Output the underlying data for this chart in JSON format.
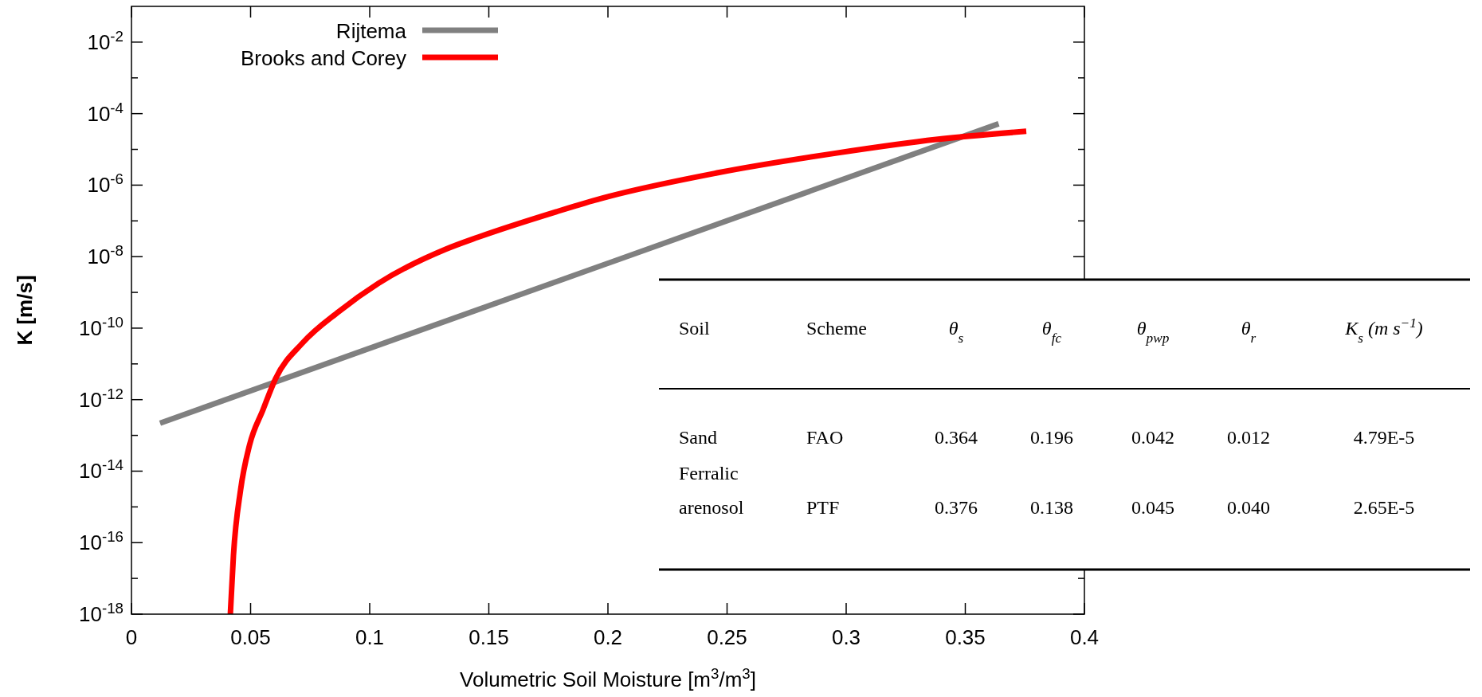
{
  "chart_data": [
    {
      "type": "line",
      "xlabel": "Volumetric Soil Moisture [m$^{3}$/m$^{3}$]",
      "ylabel": "K [m/s]",
      "log": "y",
      "xlim": [
        0,
        0.4
      ],
      "xticks": [
        0,
        0.05,
        0.1,
        0.15,
        0.2,
        0.25,
        0.3,
        0.35,
        0.4
      ],
      "ylim": [
        1e-18,
        0.1
      ],
      "yticks": [
        {
          "value": 1e-18,
          "label": "10$^{-18}$"
        },
        {
          "value": 1e-17,
          "label": null
        },
        {
          "value": 1e-16,
          "label": "10$^{-16}$"
        },
        {
          "value": 1e-15,
          "label": null
        },
        {
          "value": 1e-14,
          "label": "10$^{-14}$"
        },
        {
          "value": 1e-13,
          "label": null
        },
        {
          "value": 1e-12,
          "label": "10$^{-12}$"
        },
        {
          "value": 1e-11,
          "label": null
        },
        {
          "value": 1e-10,
          "label": "10$^{-10}$"
        },
        {
          "value": 1e-09,
          "label": null
        },
        {
          "value": 1e-08,
          "label": "10$^{-8}$"
        },
        {
          "value": 1e-07,
          "label": null
        },
        {
          "value": 1e-06,
          "label": "10$^{-6}$"
        },
        {
          "value": 1e-05,
          "label": null
        },
        {
          "value": 0.0001,
          "label": "10$^{-4}$"
        },
        {
          "value": 0.001,
          "label": null
        },
        {
          "value": 0.01,
          "label": "10$^{-2}$"
        }
      ],
      "grid": false,
      "legend": "top left",
      "line_style": "solid",
      "series": [
        {
          "name": "Rijtema",
          "color": "#808080",
          "x": [
            0.012,
            0.364
          ],
          "values": [
            2.2e-13,
            5.2e-05
          ]
        },
        {
          "name": "Brooks and Corey",
          "color": "#ff0000",
          "x": [
            0.0415,
            0.0428,
            0.0458,
            0.0495,
            0.0552,
            0.0605,
            0.0719,
            0.087,
            0.1037,
            0.1318,
            0.1455,
            0.1783,
            0.1957,
            0.2458,
            0.296,
            0.3378,
            0.3756
          ],
          "values": [
            1e-18,
            4.3e-17,
            3e-15,
            5.2e-14,
            5.2e-13,
            3.9e-12,
            3.9e-11,
            2.9e-10,
            1.8e-09,
            1.6e-08,
            3.5e-08,
            1.8e-07,
            4e-07,
            2.2e-06,
            7.9e-06,
            1.9e-05,
            3.2e-05
          ]
        }
      ]
    },
    {
      "type": "other",
      "annotations": [
        "Soil",
        "Scheme",
        "θ$_{s}$",
        "θ$_{fc}$",
        "θ$_{pwp}$",
        "θ$_{r}$",
        "K$_{s}$ (m s$^{−1}$)",
        "Sand",
        "FAO",
        "0.364",
        "0.196",
        "0.042",
        "0.012",
        "4.79E-5",
        "Ferralic arenosol",
        "PTF",
        "0.376",
        "0.138",
        "0.045",
        "0.040",
        "2.65E-5"
      ]
    }
  ]
}
